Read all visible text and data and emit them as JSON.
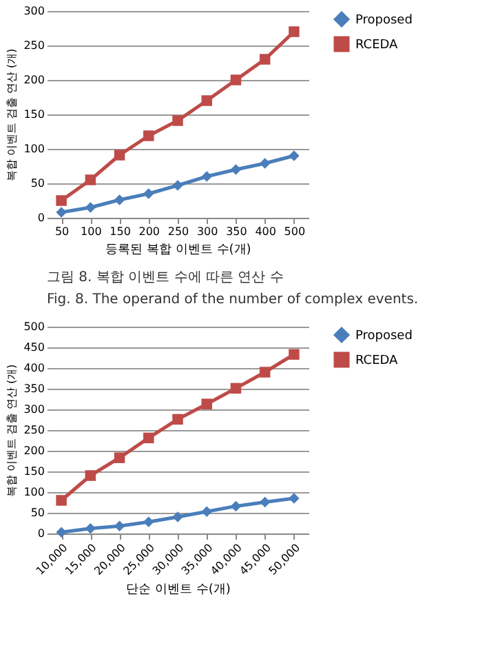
{
  "chart_data": [
    {
      "type": "line",
      "xlabel": "등록된 복합 이벤트 수(개)",
      "ylabel": "복합 이벤트 검출 연산 (개)",
      "categories": [
        "50",
        "100",
        "150",
        "200",
        "250",
        "300",
        "350",
        "400",
        "500"
      ],
      "series": [
        {
          "name": "Proposed",
          "color": "#4a7ebb",
          "marker": "diamond",
          "values": [
            8,
            15,
            26,
            35,
            47,
            60,
            70,
            79,
            90
          ]
        },
        {
          "name": "RCEDA",
          "color": "#be4b48",
          "marker": "square",
          "values": [
            25,
            55,
            91,
            119,
            141,
            170,
            200,
            230,
            270
          ]
        }
      ],
      "ylim": [
        0,
        300
      ],
      "yticks": [
        0,
        50,
        100,
        150,
        200,
        250,
        300
      ],
      "grid": "y",
      "legend": "right",
      "annotations": [
        "그림 8.  복합 이벤트 수에 따른 연산 수",
        "Fig.  8.  The operand of the number of complex events."
      ]
    },
    {
      "type": "line",
      "xlabel": "단순 이벤트 수(개)",
      "ylabel": "복합 이벤트 검출 연산 (개)",
      "categories": [
        "10,000",
        "15,000",
        "20,000",
        "25,000",
        "30,000",
        "35,000",
        "40,000",
        "45,000",
        "50,000"
      ],
      "series": [
        {
          "name": "Proposed",
          "color": "#4a7ebb",
          "marker": "diamond",
          "values": [
            3,
            12,
            18,
            28,
            40,
            53,
            66,
            76,
            85
          ]
        },
        {
          "name": "RCEDA",
          "color": "#be4b48",
          "marker": "square",
          "values": [
            80,
            140,
            183,
            231,
            276,
            313,
            351,
            390,
            433
          ]
        }
      ],
      "ylim": [
        0,
        500
      ],
      "yticks": [
        0,
        50,
        100,
        150,
        200,
        250,
        300,
        350,
        400,
        450,
        500
      ],
      "grid": "y",
      "legend": "right"
    }
  ]
}
